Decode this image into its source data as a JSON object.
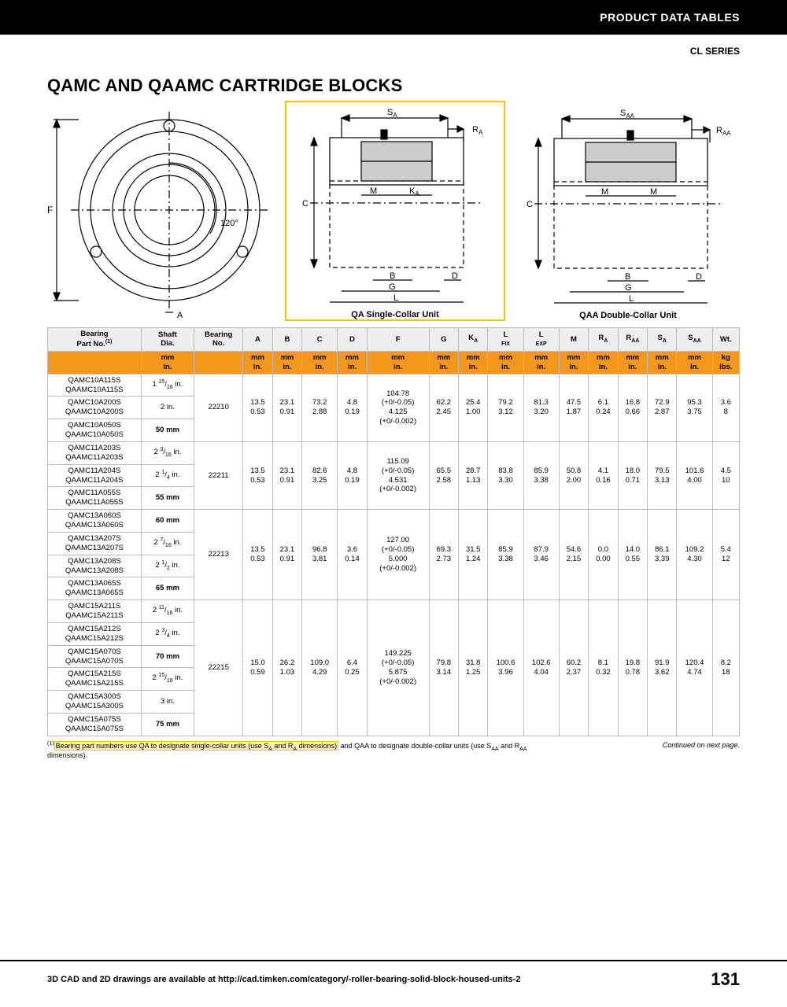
{
  "header": {
    "category": "PRODUCT DATA TABLES",
    "series": "CL SERIES"
  },
  "title": "QAMC AND QAAMC CARTRIDGE BLOCKS",
  "diagrams": {
    "front": {
      "labels": {
        "F": "F",
        "angle": "120°",
        "A": "A"
      }
    },
    "single": {
      "caption": "QA Single-Collar Unit",
      "labels": {
        "Sa": "S",
        "Ra": "R",
        "M": "M",
        "Ka": "K",
        "C": "C",
        "B": "B",
        "D": "D",
        "G": "G",
        "L": "L"
      },
      "border_color": "#f7c400"
    },
    "double": {
      "caption": "QAA Double-Collar Unit",
      "labels": {
        "Saa": "S",
        "Raa": "R",
        "M": "M",
        "C": "C",
        "B": "B",
        "D": "D",
        "G": "G",
        "L": "L"
      }
    }
  },
  "table": {
    "columns": [
      "Bearing\nPart No.(1)",
      "Shaft\nDia.",
      "Bearing\nNo.",
      "A",
      "B",
      "C",
      "D",
      "F",
      "G",
      "K",
      "L FIX",
      "L EXP",
      "M",
      "R",
      "R AA",
      "S",
      "S AA",
      "Wt."
    ],
    "col_sub": [
      "",
      "",
      "",
      "A",
      "A",
      "",
      "",
      "AA",
      "A",
      "AA"
    ],
    "units_row": [
      "",
      "mm\nin.",
      "",
      "mm\nin.",
      "mm\nin.",
      "mm\nin.",
      "mm\nin.",
      "mm\nin.",
      "mm\nin.",
      "mm\nin.",
      "mm\nin.",
      "mm\nin.",
      "mm\nin.",
      "mm\nin.",
      "mm\nin.",
      "mm\nin.",
      "mm\nin.",
      "kg\nlbs."
    ],
    "units_bg": "#f3981a",
    "groups": [
      {
        "bearing_no": "22210",
        "parts": [
          {
            "p1": "QAMC10A115S",
            "p2": "QAAMC10A115S",
            "shaft": "1 15/16 in."
          },
          {
            "p1": "QAMC10A200S",
            "p2": "QAAMC10A200S",
            "shaft": "2 in."
          },
          {
            "p1": "QAMC10A050S",
            "p2": "QAAMC10A050S",
            "shaft": "50 mm",
            "bold": true
          }
        ],
        "vals": {
          "A": [
            "13.5",
            "0.53"
          ],
          "B": [
            "23.1",
            "0.91"
          ],
          "C": [
            "73.2",
            "2.88"
          ],
          "D": [
            "4.8",
            "0.19"
          ],
          "F": [
            "104.78",
            "(+0/-0.05)",
            "4.125",
            "(+0/-0.002)"
          ],
          "G": [
            "62.2",
            "2.45"
          ],
          "Ka": [
            "25.4",
            "1.00"
          ],
          "Lfix": [
            "79.2",
            "3.12"
          ],
          "Lexp": [
            "81.3",
            "3.20"
          ],
          "M": [
            "47.5",
            "1.87"
          ],
          "Ra": [
            "6.1",
            "0.24"
          ],
          "Raa": [
            "16.8",
            "0.66"
          ],
          "Sa": [
            "72.9",
            "2.87"
          ],
          "Saa": [
            "95.3",
            "3.75"
          ],
          "Wt": [
            "3.6",
            "8"
          ]
        }
      },
      {
        "bearing_no": "22211",
        "parts": [
          {
            "p1": "QAMC11A203S",
            "p2": "QAAMC11A203S",
            "shaft": "2 3/16 in."
          },
          {
            "p1": "QAMC11A204S",
            "p2": "QAAMC11A204S",
            "shaft": "2 1/4 in."
          },
          {
            "p1": "QAMC11A055S",
            "p2": "QAAMC11A055S",
            "shaft": "55 mm",
            "bold": true
          }
        ],
        "vals": {
          "A": [
            "13.5",
            "0.53"
          ],
          "B": [
            "23.1",
            "0.91"
          ],
          "C": [
            "82.6",
            "3.25"
          ],
          "D": [
            "4.8",
            "0.19"
          ],
          "F": [
            "115.09",
            "(+0/-0.05)",
            "4.531",
            "(+0/-0.002)"
          ],
          "G": [
            "65.5",
            "2.58"
          ],
          "Ka": [
            "28.7",
            "1.13"
          ],
          "Lfix": [
            "83.8",
            "3.30"
          ],
          "Lexp": [
            "85.9",
            "3.38"
          ],
          "M": [
            "50.8",
            "2.00"
          ],
          "Ra": [
            "4.1",
            "0.16"
          ],
          "Raa": [
            "18.0",
            "0.71"
          ],
          "Sa": [
            "79.5",
            "3.13"
          ],
          "Saa": [
            "101.6",
            "4.00"
          ],
          "Wt": [
            "4.5",
            "10"
          ]
        }
      },
      {
        "bearing_no": "22213",
        "parts": [
          {
            "p1": "QAMC13A060S",
            "p2": "QAAMC13A060S",
            "shaft": "60 mm",
            "bold": true
          },
          {
            "p1": "QAMC13A207S",
            "p2": "QAAMC13A207S",
            "shaft": "2 7/16 in."
          },
          {
            "p1": "QAMC13A208S",
            "p2": "QAAMC13A208S",
            "shaft": "2 1/2 in."
          },
          {
            "p1": "QAMC13A065S",
            "p2": "QAAMC13A065S",
            "shaft": "65 mm",
            "bold": true
          }
        ],
        "vals": {
          "A": [
            "13.5",
            "0.53"
          ],
          "B": [
            "23.1",
            "0.91"
          ],
          "C": [
            "96.8",
            "3.81"
          ],
          "D": [
            "3.6",
            "0.14"
          ],
          "F": [
            "127.00",
            "(+0/-0.05)",
            "5.000",
            "(+0/-0.002)"
          ],
          "G": [
            "69.3",
            "2.73"
          ],
          "Ka": [
            "31.5",
            "1.24"
          ],
          "Lfix": [
            "85.9",
            "3.38"
          ],
          "Lexp": [
            "87.9",
            "3.46"
          ],
          "M": [
            "54.6",
            "2.15"
          ],
          "Ra": [
            "0.0",
            "0.00"
          ],
          "Raa": [
            "14.0",
            "0.55"
          ],
          "Sa": [
            "86.1",
            "3.39"
          ],
          "Saa": [
            "109.2",
            "4.30"
          ],
          "Wt": [
            "5.4",
            "12"
          ]
        }
      },
      {
        "bearing_no": "22215",
        "parts": [
          {
            "p1": "QAMC15A211S",
            "p2": "QAAMC15A211S",
            "shaft": "2 11/16 in."
          },
          {
            "p1": "QAMC15A212S",
            "p2": "QAAMC15A212S",
            "shaft": "2 3/4 in."
          },
          {
            "p1": "QAMC15A070S",
            "p2": "QAAMC15A070S",
            "shaft": "70 mm",
            "bold": true
          },
          {
            "p1": "QAMC15A215S",
            "p2": "QAAMC15A215S",
            "shaft": "2 15/16 in."
          },
          {
            "p1": "QAMC15A300S",
            "p2": "QAAMC15A300S",
            "shaft": "3 in."
          },
          {
            "p1": "QAMC15A075S",
            "p2": "QAAMC15A075S",
            "shaft": "75 mm",
            "bold": true
          }
        ],
        "vals": {
          "A": [
            "15.0",
            "0.59"
          ],
          "B": [
            "26.2",
            "1.03"
          ],
          "C": [
            "109.0",
            "4.29"
          ],
          "D": [
            "6.4",
            "0.25"
          ],
          "F": [
            "149.225",
            "(+0/-0.05)",
            "5.875",
            "(+0/-0.002)"
          ],
          "G": [
            "79.8",
            "3.14"
          ],
          "Ka": [
            "31.8",
            "1.25"
          ],
          "Lfix": [
            "100.6",
            "3.96"
          ],
          "Lexp": [
            "102.6",
            "4.04"
          ],
          "M": [
            "60.2",
            "2.37"
          ],
          "Ra": [
            "8.1",
            "0.32"
          ],
          "Raa": [
            "19.8",
            "0.78"
          ],
          "Sa": [
            "91.9",
            "3.62"
          ],
          "Saa": [
            "120.4",
            "4.74"
          ],
          "Wt": [
            "8.2",
            "18"
          ]
        }
      }
    ]
  },
  "footnote": {
    "sup": "(1)",
    "text_a": "Bearing part numbers use QA to designate single-collar units (use S",
    "text_b": " and R",
    "text_c": " dimensions)",
    "text_d": " and QAA to designate double-collar units (use S",
    "text_e": " and R",
    "text_f": " dimensions).",
    "continued": "Continued on next page."
  },
  "footer": {
    "text": "3D CAD and 2D drawings are available at http://cad.timken.com/category/-roller-bearing-solid-block-housed-units-2",
    "page": "131"
  },
  "colors": {
    "accent": "#f3981a",
    "highlight": "#f7c400",
    "border": "#bbbbbb",
    "black": "#000000"
  }
}
